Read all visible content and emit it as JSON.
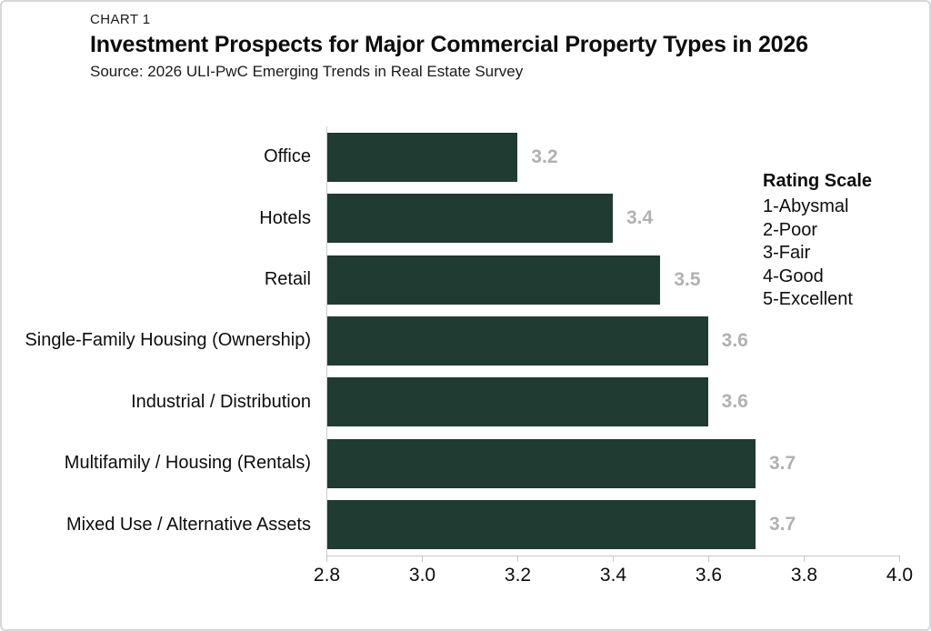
{
  "header": {
    "kicker": "CHART 1",
    "title": "Investment Prospects for Major Commercial Property Types in 2026",
    "source": "Source: 2026 ULI-PwC Emerging Trends in Real Estate Survey"
  },
  "legend": {
    "title": "Rating Scale",
    "items": [
      "1-Abysmal",
      "2-Poor",
      "3-Fair",
      "4-Good",
      "5-Excellent"
    ]
  },
  "chart_data": {
    "type": "bar",
    "orientation": "horizontal",
    "title": "Investment Prospects for Major Commercial Property Types in 2026",
    "categories": [
      "Office",
      "Hotels",
      "Retail",
      "Single-Family Housing (Ownership)",
      "Industrial / Distribution",
      "Multifamily / Housing (Rentals)",
      "Mixed Use / Alternative Assets"
    ],
    "values": [
      3.2,
      3.4,
      3.5,
      3.6,
      3.6,
      3.7,
      3.7
    ],
    "value_labels": [
      "3.2",
      "3.4",
      "3.5",
      "3.6",
      "3.6",
      "3.7",
      "3.7"
    ],
    "x_ticks": [
      "2.8",
      "3.0",
      "3.2",
      "3.4",
      "3.6",
      "3.8",
      "4.0"
    ],
    "xlim": [
      2.8,
      4.0
    ],
    "xlabel": "",
    "ylabel": "",
    "grid": false,
    "legend_position": "right",
    "bar_color": "#1f3b32",
    "value_label_color": "#b1b1b1",
    "axis_color": "#c7c7c7"
  }
}
